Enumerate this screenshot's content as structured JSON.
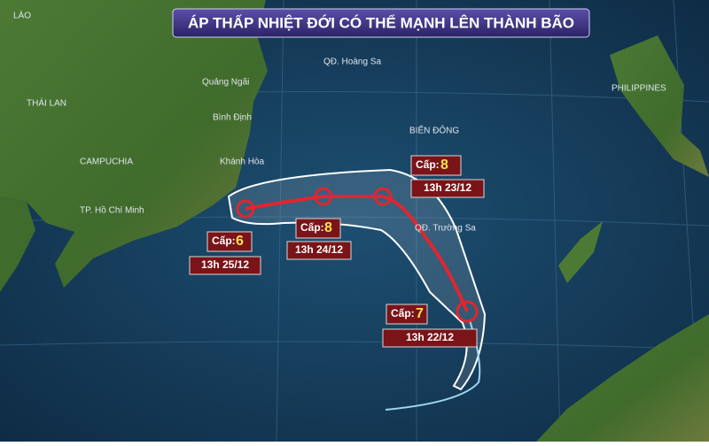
{
  "title": "ÁP THẤP NHIỆT ĐỚI CÓ THỂ MẠNH LÊN THÀNH BÃO",
  "places": [
    {
      "label": "LÀO"
    },
    {
      "label": "THÁI LAN"
    },
    {
      "label": "CAMPUCHIA"
    },
    {
      "label": "TP. Hồ Chí Minh"
    },
    {
      "label": "Quảng Ngãi"
    },
    {
      "label": "Bình Định"
    },
    {
      "label": "Khánh Hòa"
    },
    {
      "label": "QĐ. Hoàng Sa"
    },
    {
      "label": "BIỂN ĐÔNG"
    },
    {
      "label": "QĐ. Trường Sa"
    },
    {
      "label": "PHILIPPINES"
    }
  ],
  "forecast": [
    {
      "level_label": "Cấp:",
      "level": 7,
      "time": "13h 22/12"
    },
    {
      "level_label": "Cấp:",
      "level": 8,
      "time": "13h 23/12"
    },
    {
      "level_label": "Cấp:",
      "level": 8,
      "time": "13h 24/12"
    },
    {
      "level_label": "Cấp:",
      "level": 6,
      "time": "13h 25/12"
    }
  ]
}
